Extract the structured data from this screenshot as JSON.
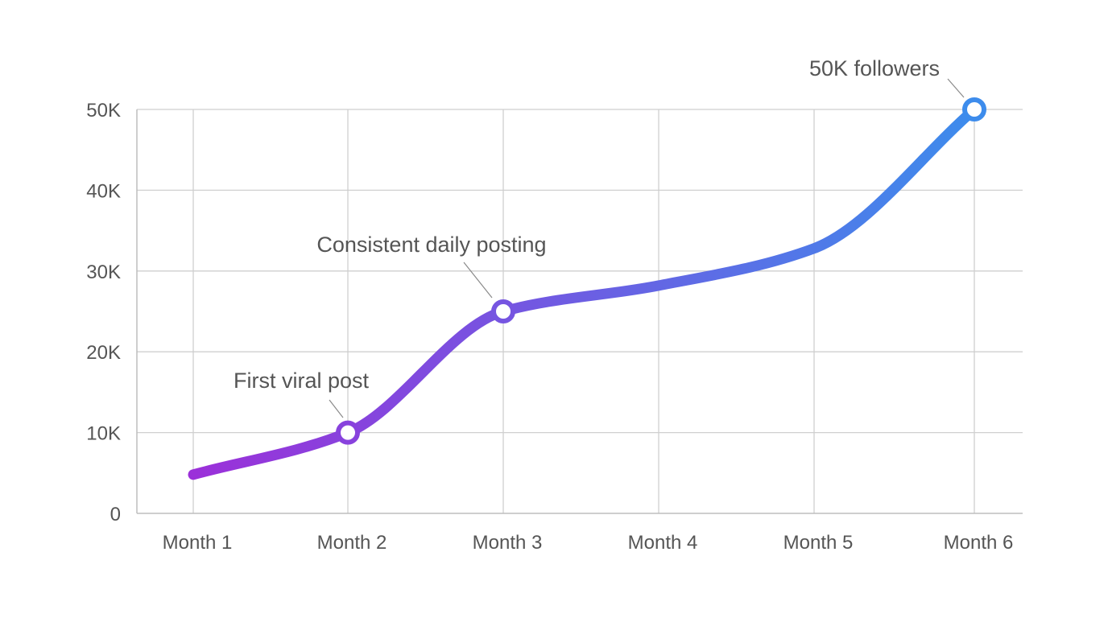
{
  "chart_data": {
    "type": "line",
    "title": "",
    "xlabel": "",
    "ylabel": "",
    "categories": [
      "Month 1",
      "Month 2",
      "Month 3",
      "Month 4",
      "Month 5",
      "Month 6"
    ],
    "values": [
      4800,
      10000,
      25000,
      28200,
      32800,
      50000
    ],
    "ylim": [
      0,
      50000
    ],
    "y_ticks": [
      0,
      10000,
      20000,
      30000,
      40000,
      50000
    ],
    "y_tick_labels": [
      "0",
      "10K",
      "20K",
      "30K",
      "40K",
      "50K"
    ],
    "grid": true,
    "line_gradient": {
      "start": "#9b30d9",
      "end": "#3d8cec"
    },
    "annotations": [
      {
        "text": "First viral post",
        "category": "Month 2",
        "value": 10000
      },
      {
        "text": "Consistent daily posting",
        "category": "Month 3",
        "value": 25000
      },
      {
        "text": "50K followers",
        "category": "Month 6",
        "value": 50000
      }
    ]
  }
}
